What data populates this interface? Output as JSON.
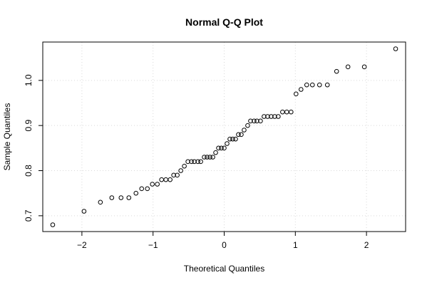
{
  "chart_data": {
    "type": "scatter",
    "title": "Normal Q-Q Plot",
    "xlabel": "Theoretical Quantiles",
    "ylabel": "Sample Quantiles",
    "xlim": [
      -2.55,
      2.55
    ],
    "ylim": [
      0.665,
      1.085
    ],
    "xticks": [
      -2,
      -1,
      0,
      1,
      2
    ],
    "xtick_labels": [
      "−2",
      "−1",
      "0",
      "1",
      "2"
    ],
    "yticks": [
      0.7,
      0.8,
      0.9,
      1.0
    ],
    "ytick_labels": [
      "0.7",
      "0.8",
      "0.9",
      "1.0"
    ],
    "grid": true,
    "marker": "open-circle",
    "series": [
      {
        "points": [
          [
            -2.41,
            0.68
          ],
          [
            -1.97,
            0.71
          ],
          [
            -1.74,
            0.73
          ],
          [
            -1.58,
            0.74
          ],
          [
            -1.45,
            0.74
          ],
          [
            -1.34,
            0.74
          ],
          [
            -1.24,
            0.75
          ],
          [
            -1.16,
            0.76
          ],
          [
            -1.08,
            0.76
          ],
          [
            -1.01,
            0.77
          ],
          [
            -0.94,
            0.77
          ],
          [
            -0.88,
            0.78
          ],
          [
            -0.82,
            0.78
          ],
          [
            -0.76,
            0.78
          ],
          [
            -0.71,
            0.79
          ],
          [
            -0.66,
            0.79
          ],
          [
            -0.61,
            0.8
          ],
          [
            -0.56,
            0.81
          ],
          [
            -0.51,
            0.82
          ],
          [
            -0.46,
            0.82
          ],
          [
            -0.42,
            0.82
          ],
          [
            -0.37,
            0.82
          ],
          [
            -0.33,
            0.82
          ],
          [
            -0.28,
            0.83
          ],
          [
            -0.24,
            0.83
          ],
          [
            -0.2,
            0.83
          ],
          [
            -0.16,
            0.83
          ],
          [
            -0.12,
            0.84
          ],
          [
            -0.08,
            0.85
          ],
          [
            -0.04,
            0.85
          ],
          [
            0.0,
            0.85
          ],
          [
            0.04,
            0.86
          ],
          [
            0.08,
            0.87
          ],
          [
            0.12,
            0.87
          ],
          [
            0.16,
            0.87
          ],
          [
            0.2,
            0.88
          ],
          [
            0.24,
            0.88
          ],
          [
            0.28,
            0.89
          ],
          [
            0.33,
            0.9
          ],
          [
            0.37,
            0.91
          ],
          [
            0.42,
            0.91
          ],
          [
            0.46,
            0.91
          ],
          [
            0.51,
            0.91
          ],
          [
            0.56,
            0.92
          ],
          [
            0.61,
            0.92
          ],
          [
            0.66,
            0.92
          ],
          [
            0.71,
            0.92
          ],
          [
            0.76,
            0.92
          ],
          [
            0.82,
            0.93
          ],
          [
            0.88,
            0.93
          ],
          [
            0.94,
            0.93
          ],
          [
            1.01,
            0.97
          ],
          [
            1.08,
            0.98
          ],
          [
            1.16,
            0.99
          ],
          [
            1.24,
            0.99
          ],
          [
            1.34,
            0.99
          ],
          [
            1.45,
            0.99
          ],
          [
            1.58,
            1.02
          ],
          [
            1.74,
            1.03
          ],
          [
            1.97,
            1.03
          ],
          [
            2.41,
            1.07
          ]
        ]
      }
    ]
  }
}
